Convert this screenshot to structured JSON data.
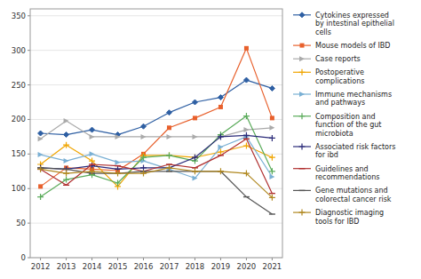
{
  "chart_data": {
    "type": "line",
    "x": [
      2012,
      2013,
      2014,
      2015,
      2016,
      2017,
      2018,
      2019,
      2020,
      2021
    ],
    "xlim": [
      2011.6,
      2021.4
    ],
    "xticks": [
      2012,
      2013,
      2014,
      2015,
      2016,
      2017,
      2018,
      2019,
      2020,
      2021
    ],
    "ylim": [
      0,
      360
    ],
    "yticks": [
      0,
      50,
      100,
      150,
      200,
      250,
      300,
      350
    ],
    "grid": true,
    "legend": "right",
    "series": [
      {
        "name": "Cytokines expressed\nby intestinal epithelial\ncells",
        "color": "#2e5fa3",
        "marker": "diamond",
        "values": [
          180,
          178,
          185,
          178,
          190,
          210,
          225,
          232,
          257,
          245
        ]
      },
      {
        "name": "Mouse models of IBD",
        "color": "#e8602c",
        "marker": "square",
        "values": [
          103,
          130,
          128,
          126,
          150,
          188,
          202,
          218,
          303,
          202
        ]
      },
      {
        "name": "Case reports",
        "color": "#aaaaaa",
        "marker": "triangle-right",
        "values": [
          172,
          198,
          175,
          175,
          175,
          175,
          175,
          175,
          185,
          188
        ]
      },
      {
        "name": "Postoperative\ncomplications",
        "color": "#f0a500",
        "marker": "plus",
        "values": [
          135,
          163,
          140,
          103,
          148,
          148,
          145,
          153,
          162,
          145
        ]
      },
      {
        "name": "Immune mechanisms\nand pathways",
        "color": "#7ab0d4",
        "marker": "triangle-right",
        "values": [
          149,
          140,
          150,
          138,
          140,
          128,
          115,
          160,
          175,
          117
        ]
      },
      {
        "name": "Composition and\nfunction of the gut\nmicrobiota",
        "color": "#5aab5a",
        "marker": "plus",
        "values": [
          88,
          113,
          120,
          108,
          145,
          148,
          140,
          178,
          205,
          125
        ]
      },
      {
        "name": "Associated risk factors\nfor ibd",
        "color": "#2c2c7a",
        "marker": "plus",
        "values": [
          130,
          128,
          133,
          128,
          130,
          130,
          145,
          175,
          177,
          173
        ]
      },
      {
        "name": "Guidelines and\nrecommendations",
        "color": "#b03030",
        "marker": "hline",
        "values": [
          128,
          105,
          135,
          133,
          125,
          135,
          130,
          148,
          172,
          93
        ]
      },
      {
        "name": "Gene mutations and\ncolorectal cancer risk",
        "color": "#555555",
        "marker": "hline",
        "values": [
          130,
          128,
          122,
          122,
          125,
          125,
          125,
          125,
          88,
          63
        ]
      },
      {
        "name": "Diagnostic imaging\ntools for IBD",
        "color": "#b08820",
        "marker": "plus",
        "values": [
          128,
          122,
          125,
          122,
          122,
          130,
          125,
          125,
          122,
          87
        ]
      }
    ]
  }
}
